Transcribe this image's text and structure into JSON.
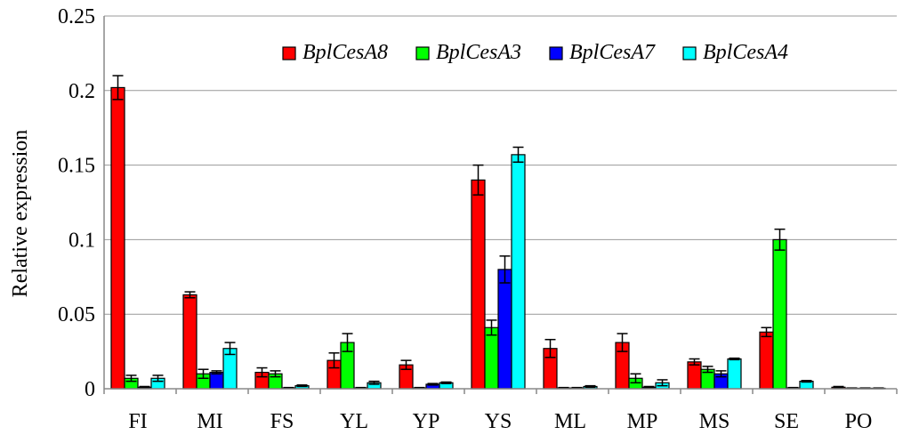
{
  "chart_data": {
    "type": "bar",
    "ylabel": "Relative expression",
    "ylim": [
      0,
      0.25
    ],
    "yticks": [
      "0",
      "0.05",
      "0.1",
      "0.15",
      "0.2",
      "0.25"
    ],
    "grid": true,
    "legend_position": "top-right",
    "categories": [
      "FI",
      "MI",
      "FS",
      "YL",
      "YP",
      "YS",
      "ML",
      "MP",
      "MS",
      "SE",
      "PO"
    ],
    "series": [
      {
        "name": "BplCesA8",
        "color": "#ff0000",
        "values": [
          0.202,
          0.063,
          0.011,
          0.019,
          0.016,
          0.14,
          0.027,
          0.031,
          0.018,
          0.038,
          0.001
        ],
        "errors": [
          0.008,
          0.002,
          0.003,
          0.005,
          0.003,
          0.01,
          0.006,
          0.006,
          0.002,
          0.003,
          0.0005
        ]
      },
      {
        "name": "BplCesA3",
        "color": "#00ff00",
        "values": [
          0.007,
          0.01,
          0.01,
          0.031,
          0.0005,
          0.041,
          0.0005,
          0.007,
          0.013,
          0.1,
          0.0003
        ],
        "errors": [
          0.002,
          0.003,
          0.002,
          0.006,
          0.0003,
          0.005,
          0.0003,
          0.003,
          0.002,
          0.007,
          0.0002
        ]
      },
      {
        "name": "BplCesA7",
        "color": "#0000ff",
        "values": [
          0.001,
          0.011,
          0.0005,
          0.0005,
          0.003,
          0.08,
          0.0005,
          0.001,
          0.01,
          0.0005,
          0.0003
        ],
        "errors": [
          0.0005,
          0.001,
          0.0003,
          0.0003,
          0.0005,
          0.009,
          0.0003,
          0.0005,
          0.002,
          0.0003,
          0.0002
        ]
      },
      {
        "name": "BplCesA4",
        "color": "#00ffff",
        "values": [
          0.007,
          0.027,
          0.002,
          0.004,
          0.004,
          0.157,
          0.0015,
          0.004,
          0.02,
          0.005,
          0.0003
        ],
        "errors": [
          0.002,
          0.004,
          0.0005,
          0.001,
          0.0005,
          0.005,
          0.0005,
          0.002,
          0.0005,
          0.0005,
          0.0002
        ]
      }
    ]
  }
}
